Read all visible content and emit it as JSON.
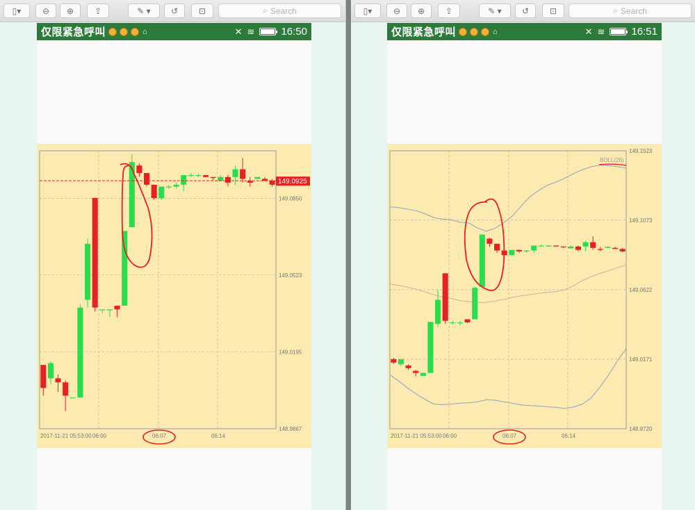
{
  "toolbar": {
    "search_placeholder": "Search"
  },
  "windows": [
    {
      "status": {
        "title": "仅限紧急呼叫",
        "time": "16:50"
      },
      "chart_data": {
        "type": "candlestick",
        "price_tag": "149.0925",
        "y_ticks": [
          "149.0850",
          "149.0523",
          "149.0195",
          "148.9867"
        ],
        "x_ticks": [
          "2017-11-21 05:53:00",
          "06:00",
          "06:07",
          "06:14"
        ],
        "ylim": [
          148.9867,
          149.1053
        ],
        "grid": true,
        "candles": [
          {
            "o": 149.0139,
            "c": 149.0041,
            "h": 149.0139,
            "l": 149.0008
          },
          {
            "o": 149.0082,
            "c": 149.0147,
            "h": 149.0155,
            "l": 149.0057
          },
          {
            "o": 149.0082,
            "c": 149.0065,
            "h": 149.0098,
            "l": 149.0024
          },
          {
            "o": 149.0065,
            "c": 149.0008,
            "h": 149.0073,
            "l": 148.9943
          },
          {
            "o": 149.0,
            "c": 149.0,
            "h": 149.0,
            "l": 149.0
          },
          {
            "o": 149.0,
            "c": 149.0384,
            "h": 149.0397,
            "l": 149.0
          },
          {
            "o": 149.0417,
            "c": 149.0656,
            "h": 149.0679,
            "l": 149.0384
          },
          {
            "o": 149.0852,
            "c": 149.0384,
            "h": 149.0852,
            "l": 149.0367
          },
          {
            "o": 149.0376,
            "c": 149.0376,
            "h": 149.0376,
            "l": 149.0359
          },
          {
            "o": 149.0376,
            "c": 149.0376,
            "h": 149.0376,
            "l": 149.0343
          },
          {
            "o": 149.0392,
            "c": 149.0376,
            "h": 149.0392,
            "l": 149.0343
          },
          {
            "o": 149.0392,
            "c": 149.0711,
            "h": 149.0711,
            "l": 149.0392
          },
          {
            "o": 149.0727,
            "c": 149.1005,
            "h": 149.1038,
            "l": 149.0727
          },
          {
            "o": 149.099,
            "c": 149.0958,
            "h": 149.0999,
            "l": 149.0941
          },
          {
            "o": 149.0958,
            "c": 149.0908,
            "h": 149.0958,
            "l": 149.09
          },
          {
            "o": 149.0908,
            "c": 149.0851,
            "h": 149.0908,
            "l": 149.0843
          },
          {
            "o": 149.0851,
            "c": 149.09,
            "h": 149.09,
            "l": 149.0843
          },
          {
            "o": 149.09,
            "c": 149.09,
            "h": 149.0908,
            "l": 149.089
          },
          {
            "o": 149.09,
            "c": 149.0908,
            "h": 149.0917,
            "l": 149.089
          },
          {
            "o": 149.0908,
            "c": 149.0949,
            "h": 149.0949,
            "l": 149.088
          },
          {
            "o": 149.0949,
            "c": 149.0949,
            "h": 149.0958,
            "l": 149.0941
          },
          {
            "o": 149.0949,
            "c": 149.0949,
            "h": 149.0954,
            "l": 149.0941
          },
          {
            "o": 149.0949,
            "c": 149.0941,
            "h": 149.0949,
            "l": 149.0941
          },
          {
            "o": 149.0941,
            "c": 149.0937,
            "h": 149.0941,
            "l": 149.0925
          },
          {
            "o": 149.0925,
            "c": 149.0941,
            "h": 149.0949,
            "l": 149.0925
          },
          {
            "o": 149.0941,
            "c": 149.0917,
            "h": 149.0949,
            "l": 149.09
          },
          {
            "o": 149.0941,
            "c": 149.0974,
            "h": 149.099,
            "l": 149.0908
          },
          {
            "o": 149.0974,
            "c": 149.0933,
            "h": 149.1022,
            "l": 149.0917
          },
          {
            "o": 149.0925,
            "c": 149.0917,
            "h": 149.0941,
            "l": 149.09
          },
          {
            "o": 149.0933,
            "c": 149.0941,
            "h": 149.0941,
            "l": 149.0933
          },
          {
            "o": 149.0933,
            "c": 149.0925,
            "h": 149.0941,
            "l": 149.0925
          },
          {
            "o": 149.0925,
            "c": 149.0908,
            "h": 149.0933,
            "l": 149.09
          }
        ]
      }
    },
    {
      "status": {
        "title": "仅限紧急呼叫",
        "time": "16:51"
      },
      "chart_data": {
        "type": "candlestick",
        "legend": "BOLL(26)",
        "y_ticks": [
          "149.1523",
          "149.1073",
          "149.0622",
          "149.0171",
          "148.9720"
        ],
        "x_ticks": [
          "2017-11-21 05:53:00",
          "06:00",
          "06:07",
          "06:14"
        ],
        "ylim": [
          148.972,
          149.1523
        ],
        "grid": true,
        "boll": {
          "upper": [
            149.116,
            149.1154,
            149.1145,
            149.1134,
            149.1115,
            149.109,
            149.108,
            149.1075,
            149.106,
            149.1055,
            149.1022,
            149.1,
            149.102,
            149.1055,
            149.11,
            149.1165,
            149.1225,
            149.1265,
            149.13,
            149.132,
            149.1345,
            149.1375,
            149.14,
            149.142,
            149.143,
            149.1426,
            149.142,
            149.141
          ],
          "middle": [
            149.066,
            149.065,
            149.0638,
            149.0625,
            149.0608,
            149.059,
            149.0573,
            149.0565,
            149.0551,
            149.0545,
            149.0538,
            149.054,
            149.0548,
            149.0558,
            149.0572,
            149.0582,
            149.059,
            149.0598,
            149.0605,
            149.061,
            149.0622,
            149.0648,
            149.068,
            149.0706,
            149.0728,
            149.0745,
            149.0765,
            149.0782
          ],
          "lower": [
            149.007,
            149.003,
            148.9985,
            148.9945,
            148.991,
            148.988,
            148.9876,
            148.988,
            148.9885,
            148.9888,
            148.9895,
            148.9908,
            148.9905,
            148.9895,
            148.9885,
            148.9874,
            148.987,
            148.9868,
            148.9862,
            148.9858,
            148.9852,
            148.986,
            148.988,
            148.992,
            148.999,
            149.007,
            149.016,
            149.024
          ]
        },
        "candles": [
          {
            "o": 149.0171,
            "c": 149.0149,
            "h": 149.018,
            "l": 149.014
          },
          {
            "o": 149.0138,
            "c": 149.0171,
            "h": 149.0171,
            "l": 149.0126
          },
          {
            "o": 149.013,
            "c": 149.0113,
            "h": 149.0138,
            "l": 149.01
          },
          {
            "o": 149.0095,
            "c": 149.0082,
            "h": 149.0101,
            "l": 149.006
          },
          {
            "o": 149.0062,
            "c": 149.0082,
            "h": 149.0084,
            "l": 149.0062
          },
          {
            "o": 149.0082,
            "c": 149.0413,
            "h": 149.0413,
            "l": 149.0082
          },
          {
            "o": 149.04,
            "c": 149.0556,
            "h": 149.062,
            "l": 149.038
          },
          {
            "o": 149.0728,
            "c": 149.042,
            "h": 149.0728,
            "l": 149.04
          },
          {
            "o": 149.041,
            "c": 149.041,
            "h": 149.042,
            "l": 149.0396
          },
          {
            "o": 149.041,
            "c": 149.041,
            "h": 149.042,
            "l": 149.039
          },
          {
            "o": 149.043,
            "c": 149.041,
            "h": 149.043,
            "l": 149.0405
          },
          {
            "o": 149.043,
            "c": 149.0634,
            "h": 149.064,
            "l": 149.043
          },
          {
            "o": 149.064,
            "c": 149.098,
            "h": 149.098,
            "l": 149.064
          },
          {
            "o": 149.0953,
            "c": 149.092,
            "h": 149.096,
            "l": 149.09
          },
          {
            "o": 149.092,
            "c": 149.0876,
            "h": 149.092,
            "l": 149.086
          },
          {
            "o": 149.0876,
            "c": 149.0846,
            "h": 149.0876,
            "l": 149.0838
          },
          {
            "o": 149.0846,
            "c": 149.088,
            "h": 149.088,
            "l": 149.0838
          },
          {
            "o": 149.088,
            "c": 149.087,
            "h": 149.088,
            "l": 149.086
          },
          {
            "o": 149.087,
            "c": 149.0876,
            "h": 149.088,
            "l": 149.086
          },
          {
            "o": 149.0876,
            "c": 149.0908,
            "h": 149.0908,
            "l": 149.086
          },
          {
            "o": 149.0908,
            "c": 149.0908,
            "h": 149.0915,
            "l": 149.09
          },
          {
            "o": 149.0908,
            "c": 149.0908,
            "h": 149.0912,
            "l": 149.09
          },
          {
            "o": 149.0908,
            "c": 149.0902,
            "h": 149.0908,
            "l": 149.09
          },
          {
            "o": 149.0902,
            "c": 149.0899,
            "h": 149.0902,
            "l": 149.089
          },
          {
            "o": 149.089,
            "c": 149.0902,
            "h": 149.0908,
            "l": 149.089
          },
          {
            "o": 149.0902,
            "c": 149.088,
            "h": 149.0908,
            "l": 149.087
          },
          {
            "o": 149.0902,
            "c": 149.093,
            "h": 149.094,
            "l": 149.087
          },
          {
            "o": 149.093,
            "c": 149.0893,
            "h": 149.0968,
            "l": 149.088
          },
          {
            "o": 149.0886,
            "c": 149.088,
            "h": 149.09,
            "l": 149.087
          },
          {
            "o": 149.0893,
            "c": 149.09,
            "h": 149.09,
            "l": 149.089
          },
          {
            "o": 149.0893,
            "c": 149.0886,
            "h": 149.09,
            "l": 149.0886
          },
          {
            "o": 149.0886,
            "c": 149.087,
            "h": 149.0893,
            "l": 149.0865
          }
        ]
      }
    }
  ]
}
